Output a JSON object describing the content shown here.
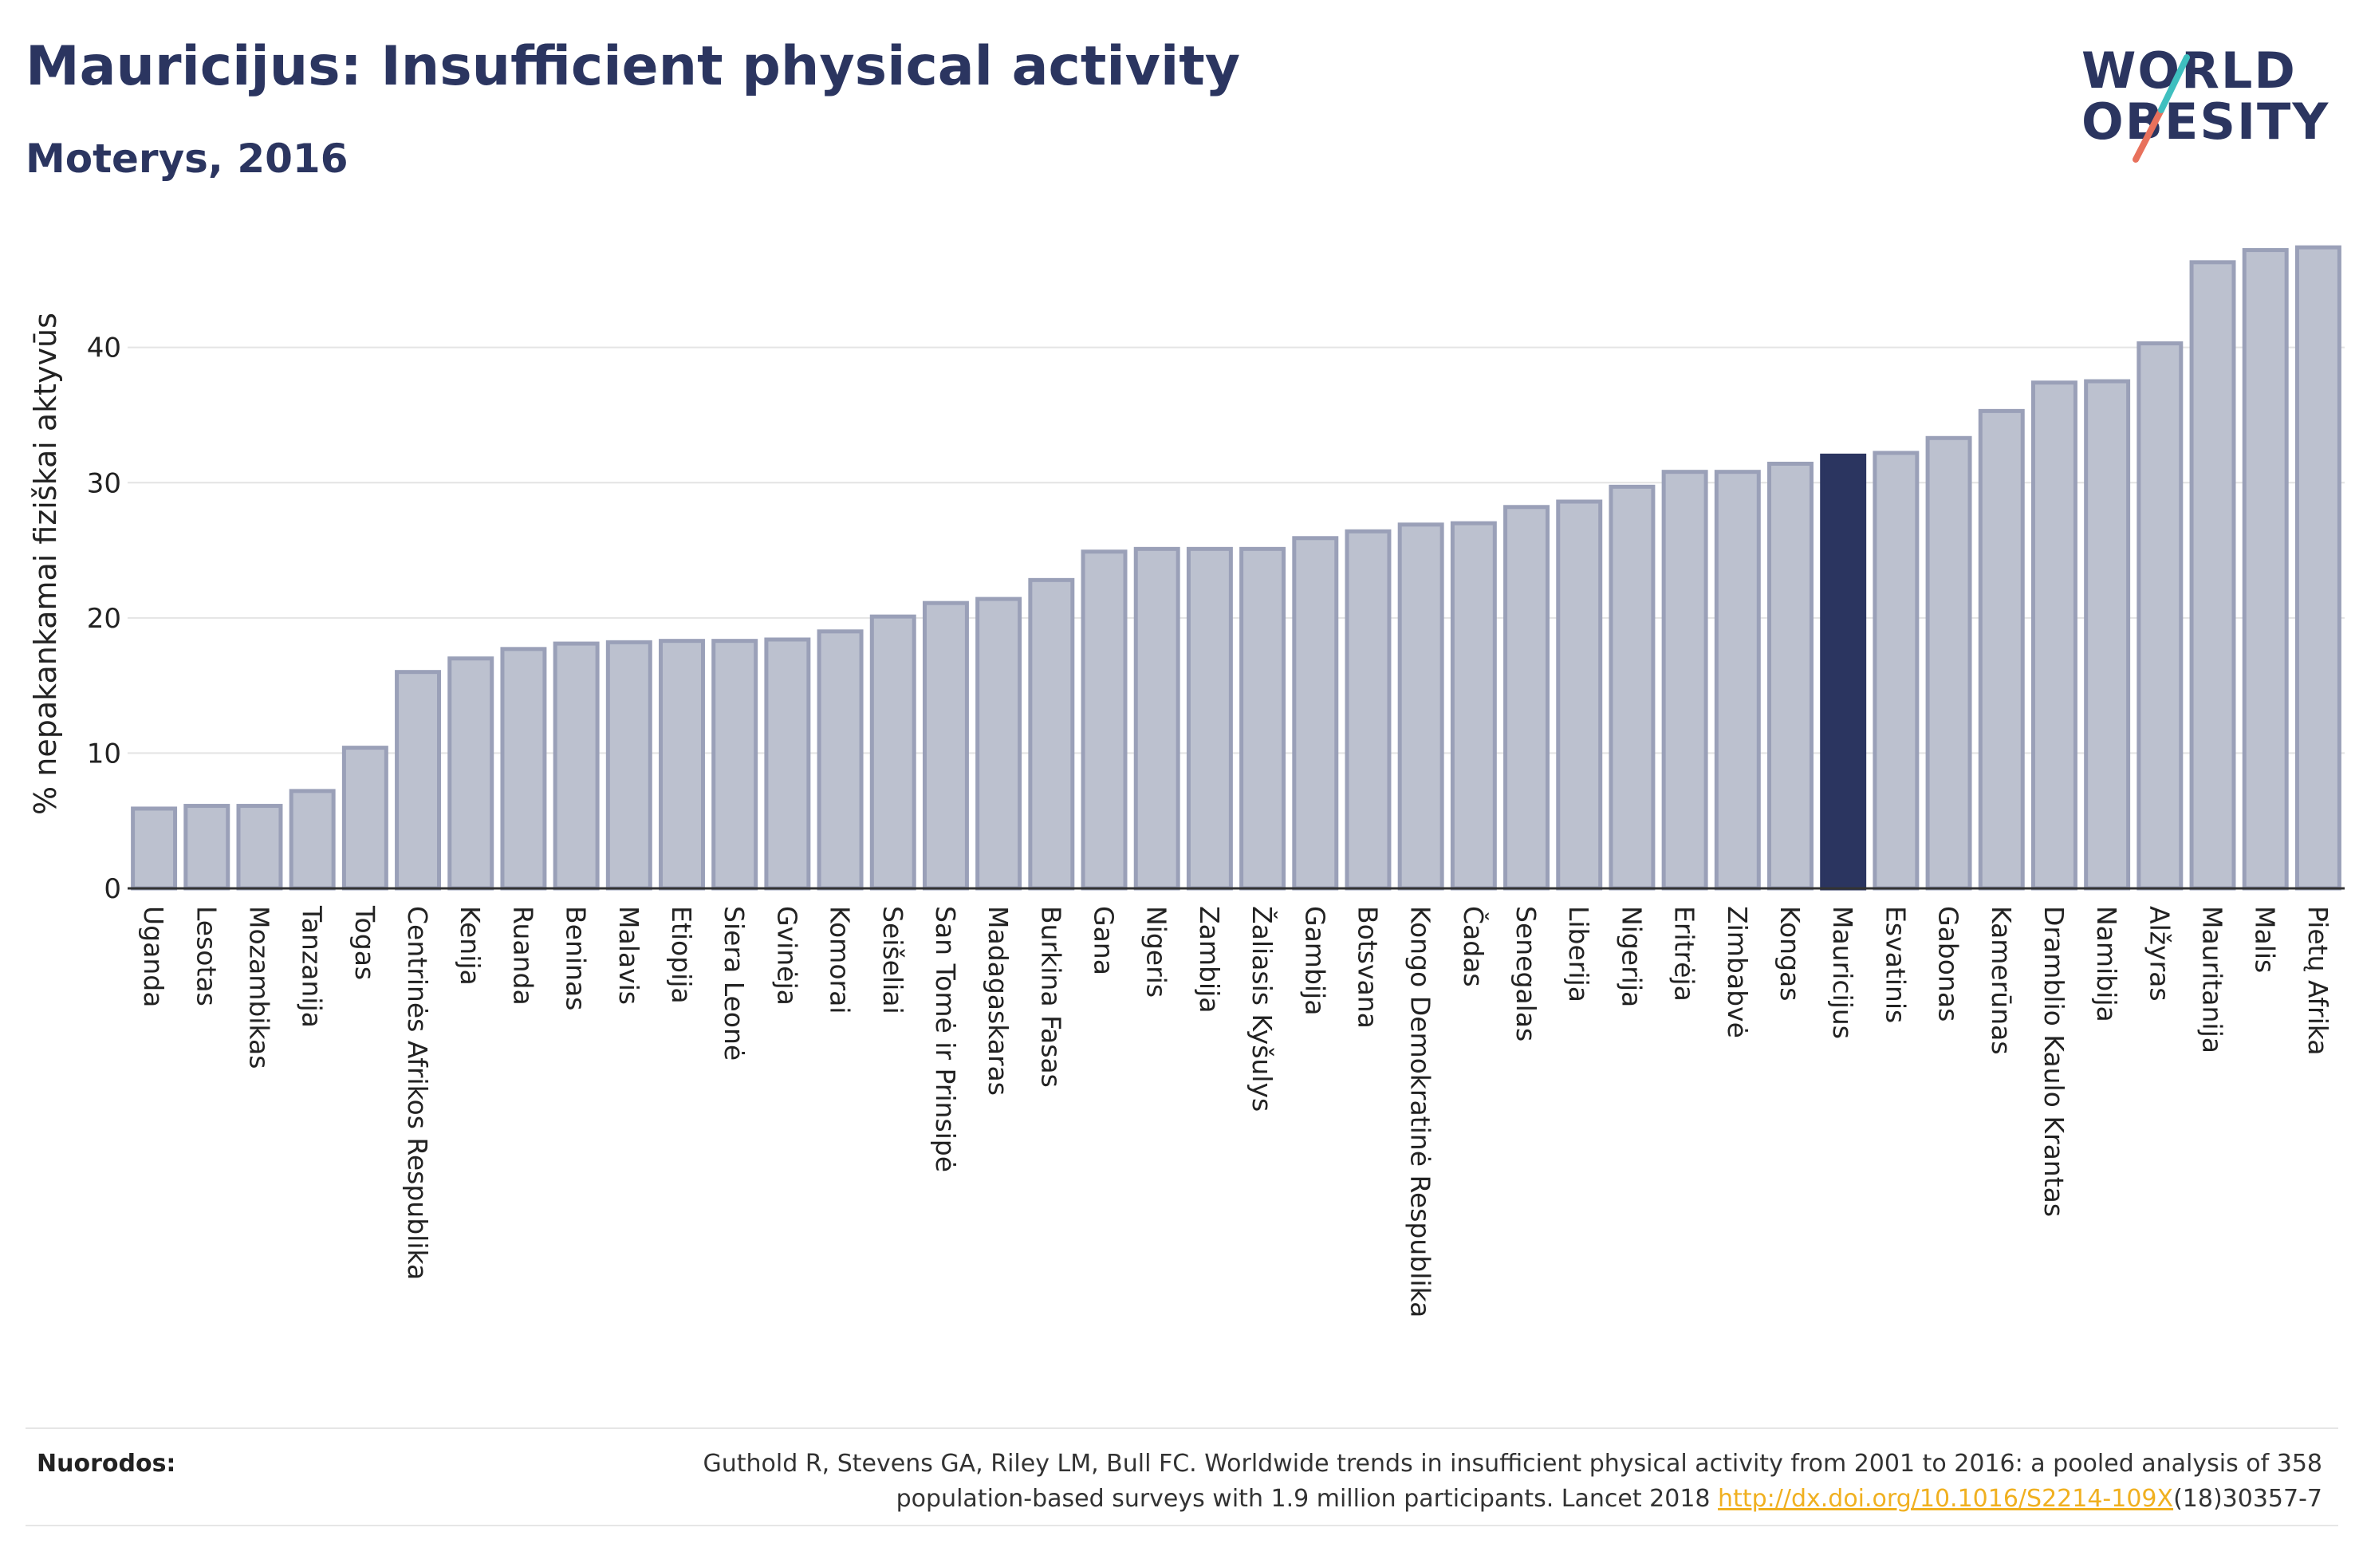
{
  "title": "Mauricijus: Insufficient physical activity",
  "subtitle": "Moterys, 2016",
  "logo": {
    "line1": "WORLD",
    "line2": "OBESITY"
  },
  "references": {
    "label": "Nuorodos:",
    "text_before": "Guthold R, Stevens GA, Riley LM, Bull FC. Worldwide trends in insufficient physical activity from 2001 to 2016: a pooled analysis of 358 population-based surveys with 1.9 million participants. Lancet 2018 ",
    "link": "http://dx.doi.org/10.1016/S2214-109X",
    "text_after": "(18)30357-7"
  },
  "colors": {
    "bar": "#bcc1cf",
    "bar_border": "#9aa0b8",
    "highlight": "#2b3560",
    "link": "#f0b020"
  },
  "chart_data": {
    "type": "bar",
    "ylabel": "% nepakankamai fiziškai aktyvūs",
    "ylim": [
      0,
      48
    ],
    "yticks": [
      0,
      10,
      20,
      30,
      40
    ],
    "grid": true,
    "highlight": "Mauricijus",
    "categories": [
      "Uganda",
      "Lesotas",
      "Mozambikas",
      "Tanzanija",
      "Togas",
      "Centrinės Afrikos Respublika",
      "Kenija",
      "Ruanda",
      "Beninas",
      "Malavis",
      "Etiopija",
      "Siera Leonė",
      "Gvinėja",
      "Komorai",
      "Seišeliai",
      "San Tomė ir Prinsipė",
      "Madagaskaras",
      "Burkina Fasas",
      "Gana",
      "Nigeris",
      "Zambija",
      "Žaliasis Kyšulys",
      "Gambija",
      "Botsvana",
      "Kongo Demokratinė Respublika",
      "Čadas",
      "Senegalas",
      "Liberija",
      "Nigerija",
      "Eritrėja",
      "Zimbabvė",
      "Kongas",
      "Mauricijus",
      "Esvatinis",
      "Gabonas",
      "Kamerūnas",
      "Dramblio Kaulo Krantas",
      "Namibija",
      "Alžyras",
      "Mauritanija",
      "Malis",
      "Pietų Afrika"
    ],
    "values": [
      5.9,
      6.1,
      6.1,
      7.2,
      10.4,
      16.0,
      17.0,
      17.7,
      18.1,
      18.2,
      18.3,
      18.3,
      18.4,
      19.0,
      20.1,
      21.1,
      21.4,
      22.8,
      24.9,
      25.1,
      25.1,
      25.1,
      25.9,
      26.4,
      26.9,
      27.0,
      28.2,
      28.6,
      29.7,
      30.8,
      30.8,
      31.4,
      32.0,
      32.2,
      33.3,
      35.3,
      37.4,
      37.5,
      40.3,
      46.3,
      47.2,
      47.4
    ]
  }
}
